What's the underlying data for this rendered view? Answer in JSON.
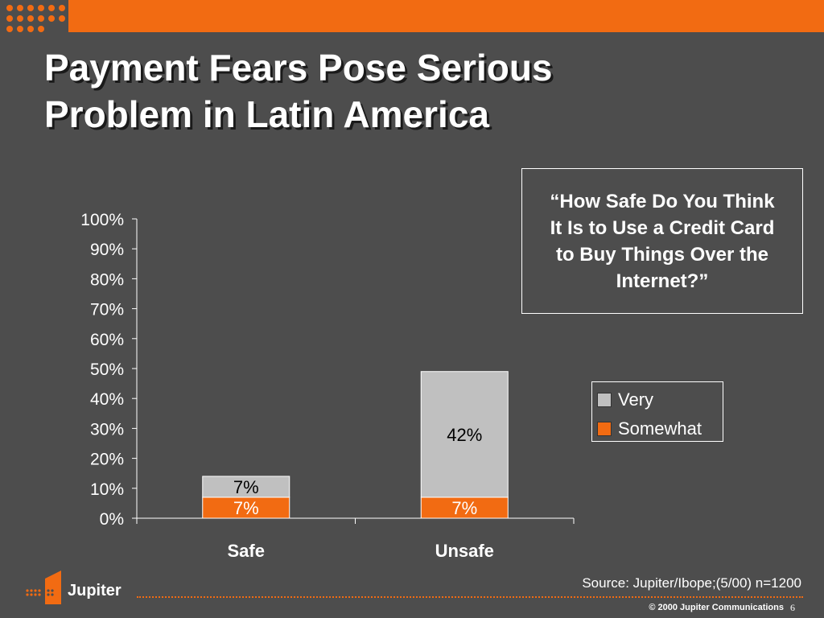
{
  "slide": {
    "title_line1": "Payment Fears Pose Serious",
    "title_line2": "Problem in Latin America",
    "question": "“How Safe Do You Think It Is to Use a Credit Card to Buy Things Over the Internet?”",
    "source": "Source: Jupiter/Ibope;(5/00) n=1200",
    "logo_text": "Jupiter",
    "copyright": "© 2000 Jupiter Communications",
    "page_number": "6"
  },
  "colors": {
    "background": "#4d4d4d",
    "accent": "#f26b12",
    "very": "#c0c0c0",
    "somewhat": "#f26b12"
  },
  "chart_data": {
    "type": "bar",
    "stacked": true,
    "categories": [
      "Safe",
      "Unsafe"
    ],
    "series": [
      {
        "name": "Somewhat",
        "values": [
          7,
          7
        ],
        "labels": [
          "7%",
          "7%"
        ],
        "color": "#f26b12"
      },
      {
        "name": "Very",
        "values": [
          7,
          42
        ],
        "labels": [
          "7%",
          "42%"
        ],
        "color": "#c0c0c0"
      }
    ],
    "ylim": [
      0,
      100
    ],
    "yticks": [
      "0%",
      "10%",
      "20%",
      "30%",
      "40%",
      "50%",
      "60%",
      "70%",
      "80%",
      "90%",
      "100%"
    ],
    "legend": [
      "Very",
      "Somewhat"
    ],
    "legend_position": "right",
    "grid": false
  }
}
